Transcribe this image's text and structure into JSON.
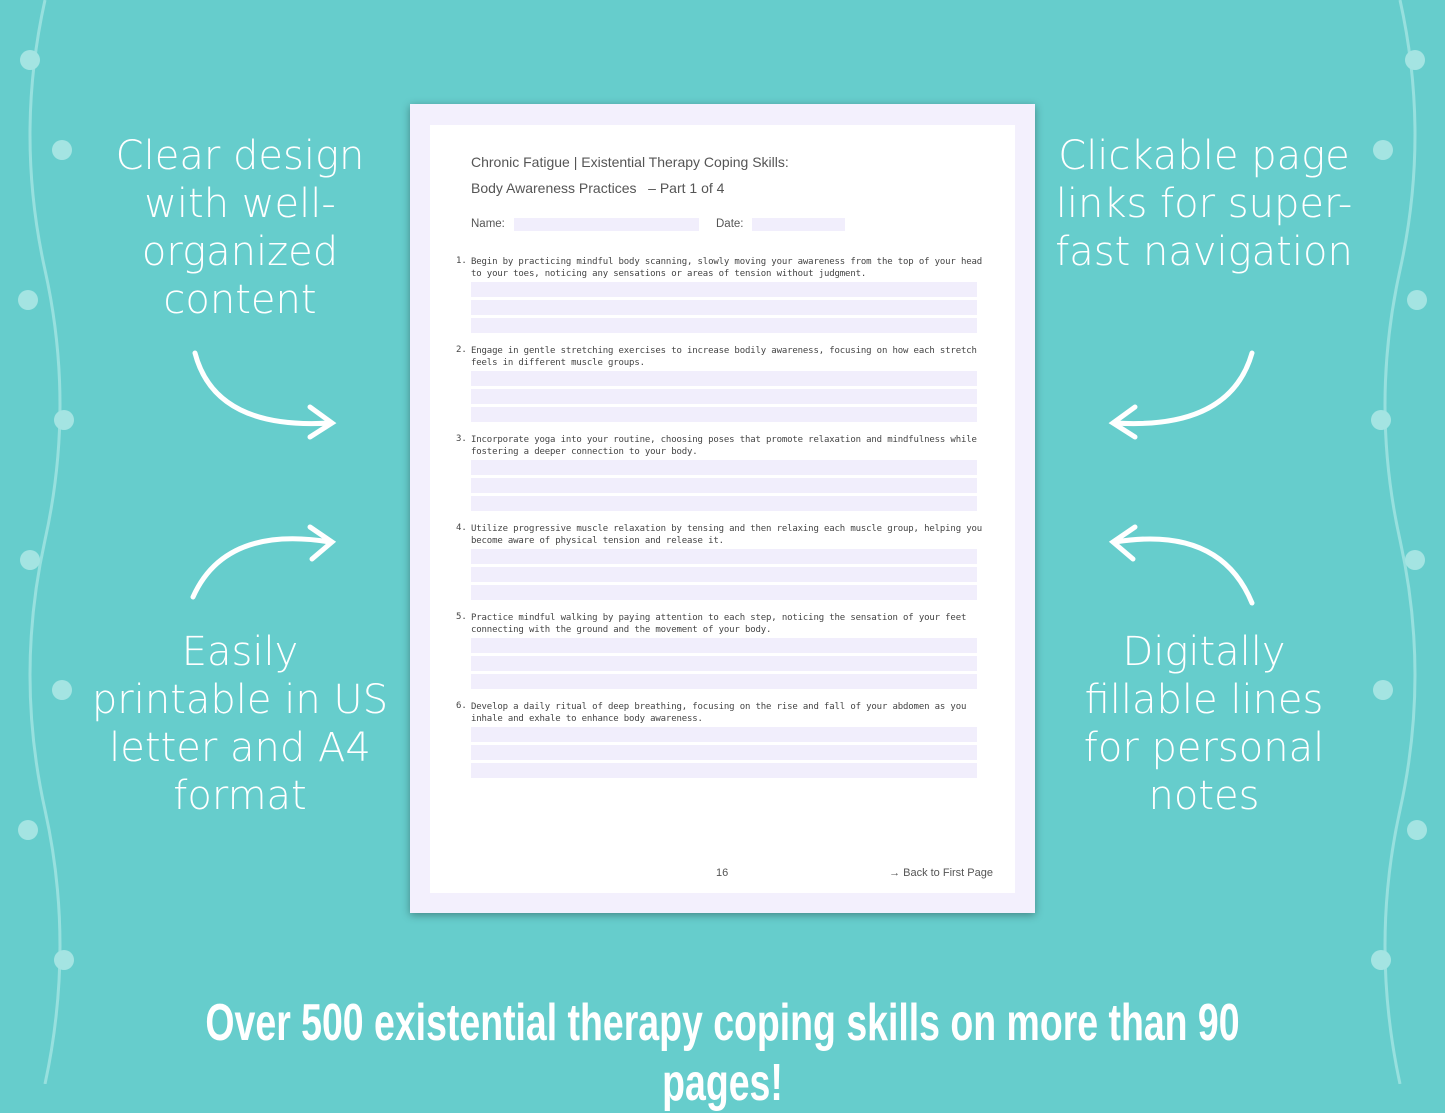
{
  "colors": {
    "background": "#66cdcc",
    "page_margin": "#f3f0fd",
    "field": "#f1eefc",
    "text": "#ffffff"
  },
  "features": {
    "top_left": "Clear design with well-organized content",
    "bottom_left": "Easily printable in US letter and A4 format",
    "top_right": "Clickable page links for super-fast navigation",
    "bottom_right": "Digitally fillable lines for personal notes"
  },
  "worksheet": {
    "title_line1": "Chronic Fatigue | Existential Therapy Coping Skills:",
    "title_line2": "Body Awareness Practices   – Part 1 of 4",
    "name_label": "Name:",
    "date_label": "Date:",
    "items": [
      {
        "num": "1.",
        "text": "Begin by practicing mindful body scanning, slowly moving your awareness from the top of your head to your toes, noticing any sensations or areas of tension without judgment."
      },
      {
        "num": "2.",
        "text": "Engage in gentle stretching exercises to increase bodily awareness, focusing on how each stretch feels in different muscle groups."
      },
      {
        "num": "3.",
        "text": "Incorporate yoga into your routine, choosing poses that promote relaxation and mindfulness while fostering a deeper connection to your body."
      },
      {
        "num": "4.",
        "text": "Utilize progressive muscle relaxation by tensing and then relaxing each muscle group, helping you become aware of physical tension and release it."
      },
      {
        "num": "5.",
        "text": "Practice mindful walking by paying attention to each step, noticing the sensation of your feet connecting with the ground and the movement of your body."
      },
      {
        "num": "6.",
        "text": "Develop a daily ritual of deep breathing, focusing on the rise and fall of your abdomen as you inhale and exhale to enhance body awareness."
      }
    ],
    "page_number": "16",
    "back_link": "→ Back to First Page"
  },
  "banner": "Over 500 existential therapy coping skills on more than 90 pages!"
}
